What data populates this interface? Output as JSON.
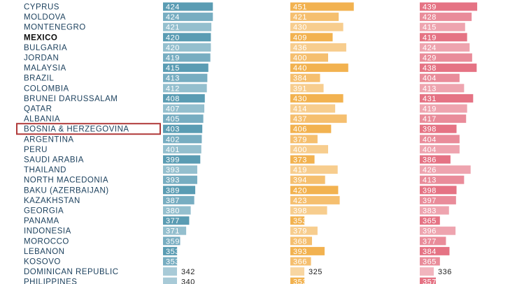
{
  "chart_data": {
    "type": "bar",
    "title": "",
    "xlabel": "",
    "ylabel": "",
    "highlight": "BOSNIA & HERZEGOVINA",
    "bold_category": "MEXICO",
    "categories": [
      "CYPRUS",
      "MOLDOVA",
      "MONTENEGRO",
      "MEXICO",
      "BULGARIA",
      "JORDAN",
      "MALAYSIA",
      "BRAZIL",
      "COLOMBIA",
      "BRUNEI DARUSSALAM",
      "QATAR",
      "ALBANIA",
      "BOSNIA & HERZEGOVINA",
      "ARGENTINA",
      "PERU",
      "SAUDI ARABIA",
      "THAILAND",
      "NORTH MACEDONIA",
      "BAKU (AZERBAIJAN)",
      "KAZAKHSTAN",
      "GEORGIA",
      "PANAMA",
      "INDONESIA",
      "MOROCCO",
      "LEBANON",
      "KOSOVO",
      "DOMINICAN REPUBLIC",
      "PHILIPPINES"
    ],
    "series": [
      {
        "color": "#3d8aa6",
        "values": [
          424,
          424,
          421,
          420,
          420,
          419,
          415,
          413,
          412,
          408,
          407,
          405,
          403,
          402,
          401,
          399,
          393,
          393,
          389,
          387,
          380,
          377,
          371,
          359,
          353,
          353,
          342,
          340
        ]
      },
      {
        "color": "#f0a431",
        "values": [
          451,
          421,
          430,
          409,
          436,
          400,
          440,
          384,
          391,
          430,
          414,
          437,
          406,
          379,
          400,
          373,
          419,
          394,
          420,
          423,
          398,
          353,
          379,
          368,
          393,
          366,
          325,
          353
        ]
      },
      {
        "color": "#e05a6e",
        "values": [
          439,
          428,
          415,
          419,
          424,
          429,
          438,
          404,
          413,
          431,
          419,
          417,
          398,
          404,
          404,
          386,
          426,
          413,
          398,
          397,
          383,
          365,
          396,
          377,
          384,
          365,
          336,
          357
        ]
      }
    ]
  }
}
